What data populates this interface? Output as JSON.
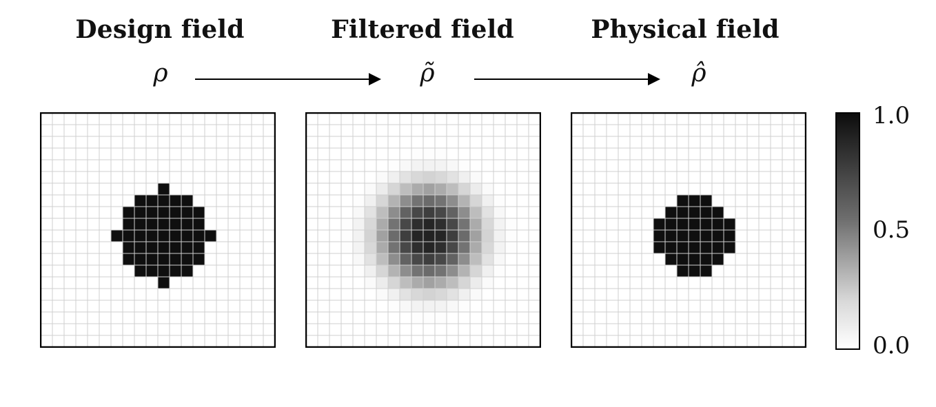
{
  "titles": {
    "design": "Design field",
    "filtered": "Filtered field",
    "physical": "Physical field"
  },
  "symbols": {
    "design": "ρ",
    "filtered": "ρ̃",
    "physical": "ρ̂"
  },
  "colorbar": {
    "ticks": [
      "1.0",
      "0.5",
      "0.0"
    ],
    "colormap": "grayscale white-to-black"
  },
  "grid": {
    "size": 20
  },
  "design_cells": [
    [
      6,
      10
    ],
    [
      7,
      8
    ],
    [
      7,
      9
    ],
    [
      7,
      10
    ],
    [
      7,
      11
    ],
    [
      7,
      12
    ],
    [
      8,
      7
    ],
    [
      8,
      8
    ],
    [
      8,
      9
    ],
    [
      8,
      10
    ],
    [
      8,
      11
    ],
    [
      8,
      12
    ],
    [
      8,
      13
    ],
    [
      9,
      7
    ],
    [
      9,
      8
    ],
    [
      9,
      9
    ],
    [
      9,
      10
    ],
    [
      9,
      11
    ],
    [
      9,
      12
    ],
    [
      9,
      13
    ],
    [
      10,
      6
    ],
    [
      10,
      7
    ],
    [
      10,
      8
    ],
    [
      10,
      9
    ],
    [
      10,
      10
    ],
    [
      10,
      11
    ],
    [
      10,
      12
    ],
    [
      10,
      13
    ],
    [
      10,
      14
    ],
    [
      11,
      7
    ],
    [
      11,
      8
    ],
    [
      11,
      9
    ],
    [
      11,
      10
    ],
    [
      11,
      11
    ],
    [
      11,
      12
    ],
    [
      11,
      13
    ],
    [
      12,
      7
    ],
    [
      12,
      8
    ],
    [
      12,
      9
    ],
    [
      12,
      10
    ],
    [
      12,
      11
    ],
    [
      12,
      12
    ],
    [
      12,
      13
    ],
    [
      13,
      8
    ],
    [
      13,
      9
    ],
    [
      13,
      10
    ],
    [
      13,
      11
    ],
    [
      13,
      12
    ],
    [
      14,
      10
    ]
  ],
  "physical_cells": [
    [
      7,
      9
    ],
    [
      7,
      10
    ],
    [
      7,
      11
    ],
    [
      8,
      8
    ],
    [
      8,
      9
    ],
    [
      8,
      10
    ],
    [
      8,
      11
    ],
    [
      8,
      12
    ],
    [
      9,
      7
    ],
    [
      9,
      8
    ],
    [
      9,
      9
    ],
    [
      9,
      10
    ],
    [
      9,
      11
    ],
    [
      9,
      12
    ],
    [
      9,
      13
    ],
    [
      10,
      7
    ],
    [
      10,
      8
    ],
    [
      10,
      9
    ],
    [
      10,
      10
    ],
    [
      10,
      11
    ],
    [
      10,
      12
    ],
    [
      10,
      13
    ],
    [
      11,
      7
    ],
    [
      11,
      8
    ],
    [
      11,
      9
    ],
    [
      11,
      10
    ],
    [
      11,
      11
    ],
    [
      11,
      12
    ],
    [
      11,
      13
    ],
    [
      12,
      8
    ],
    [
      12,
      9
    ],
    [
      12,
      10
    ],
    [
      12,
      11
    ],
    [
      12,
      12
    ],
    [
      13,
      9
    ],
    [
      13,
      10
    ],
    [
      13,
      11
    ]
  ],
  "filter_radius_cells": 3
}
